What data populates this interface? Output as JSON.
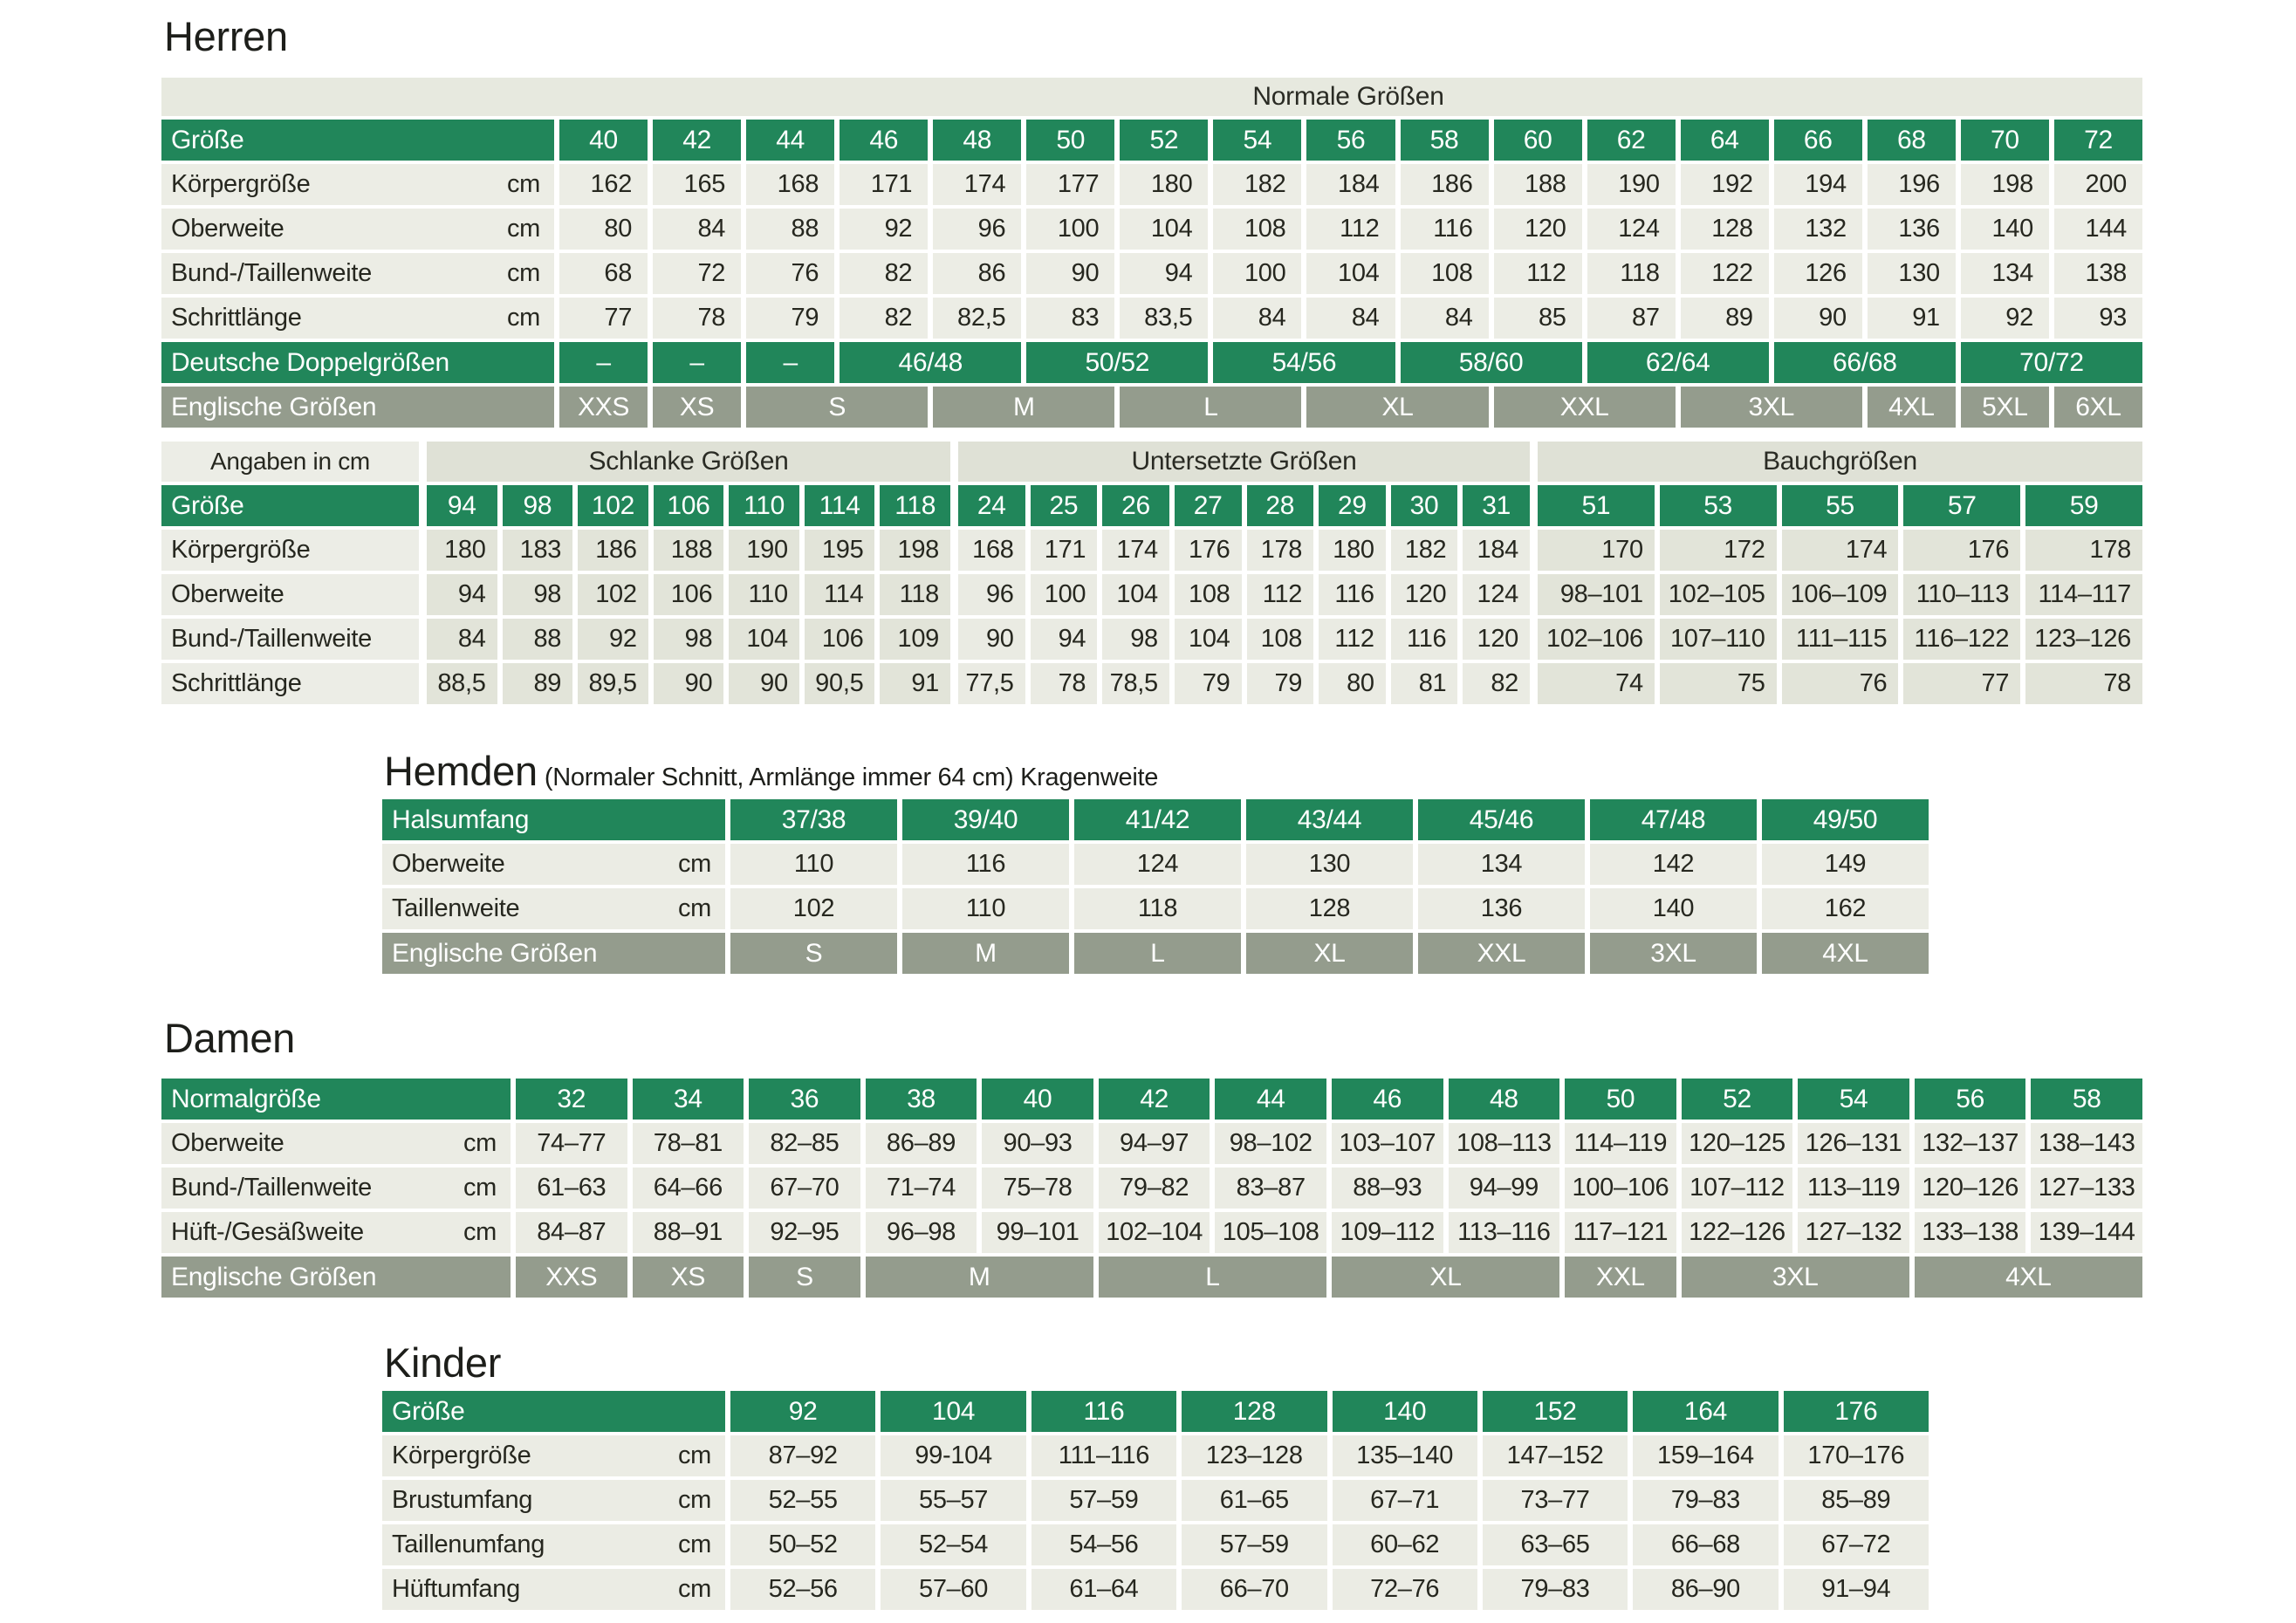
{
  "herren": {
    "title": "Herren",
    "band": "Normale Größen",
    "size_label": "Größe",
    "sizes": [
      "40",
      "42",
      "44",
      "46",
      "48",
      "50",
      "52",
      "54",
      "56",
      "58",
      "60",
      "62",
      "64",
      "66",
      "68",
      "70",
      "72"
    ],
    "rows": [
      {
        "label": "Körpergröße",
        "unit": "cm",
        "values": [
          "162",
          "165",
          "168",
          "171",
          "174",
          "177",
          "180",
          "182",
          "184",
          "186",
          "188",
          "190",
          "192",
          "194",
          "196",
          "198",
          "200"
        ]
      },
      {
        "label": "Oberweite",
        "unit": "cm",
        "values": [
          "80",
          "84",
          "88",
          "92",
          "96",
          "100",
          "104",
          "108",
          "112",
          "116",
          "120",
          "124",
          "128",
          "132",
          "136",
          "140",
          "144"
        ]
      },
      {
        "label": "Bund-/Taillenweite",
        "unit": "cm",
        "values": [
          "68",
          "72",
          "76",
          "82",
          "86",
          "90",
          "94",
          "100",
          "104",
          "108",
          "112",
          "118",
          "122",
          "126",
          "130",
          "134",
          "138"
        ]
      },
      {
        "label": "Schrittlänge",
        "unit": "cm",
        "values": [
          "77",
          "78",
          "79",
          "82",
          "82,5",
          "83",
          "83,5",
          "84",
          "84",
          "84",
          "85",
          "87",
          "89",
          "90",
          "91",
          "92",
          "93"
        ]
      }
    ],
    "doppel": {
      "label": "Deutsche Doppelgrößen",
      "cells": [
        {
          "t": "–",
          "s": 1
        },
        {
          "t": "–",
          "s": 1
        },
        {
          "t": "–",
          "s": 1
        },
        {
          "t": "46/48",
          "s": 2
        },
        {
          "t": "50/52",
          "s": 2
        },
        {
          "t": "54/56",
          "s": 2
        },
        {
          "t": "58/60",
          "s": 2
        },
        {
          "t": "62/64",
          "s": 2
        },
        {
          "t": "66/68",
          "s": 2
        },
        {
          "t": "70/72",
          "s": 2
        }
      ]
    },
    "english": {
      "label": "Englische Größen",
      "cells": [
        {
          "t": "XXS",
          "s": 1
        },
        {
          "t": "XS",
          "s": 1
        },
        {
          "t": "S",
          "s": 2
        },
        {
          "t": "M",
          "s": 2
        },
        {
          "t": "L",
          "s": 2
        },
        {
          "t": "XL",
          "s": 2
        },
        {
          "t": "XXL",
          "s": 2
        },
        {
          "t": "3XL",
          "s": 2
        },
        {
          "t": "4XL",
          "s": 1
        },
        {
          "t": "5XL",
          "s": 1
        },
        {
          "t": "6XL",
          "s": 1
        }
      ]
    }
  },
  "spezial": {
    "corner": "Angaben in cm",
    "size_label": "Größe",
    "row_labels": [
      "Körpergröße",
      "Oberweite",
      "Bund-/Taillenweite",
      "Schrittlänge"
    ],
    "groups": [
      {
        "name": "Schlanke Größen",
        "sizes": [
          "94",
          "98",
          "102",
          "106",
          "110",
          "114",
          "118"
        ],
        "rows": [
          [
            "180",
            "183",
            "186",
            "188",
            "190",
            "195",
            "198"
          ],
          [
            "94",
            "98",
            "102",
            "106",
            "110",
            "114",
            "118"
          ],
          [
            "84",
            "88",
            "92",
            "98",
            "104",
            "106",
            "109"
          ],
          [
            "88,5",
            "89",
            "89,5",
            "90",
            "90",
            "90,5",
            "91"
          ]
        ]
      },
      {
        "name": "Untersetzte Größen",
        "sizes": [
          "24",
          "25",
          "26",
          "27",
          "28",
          "29",
          "30",
          "31"
        ],
        "rows": [
          [
            "168",
            "171",
            "174",
            "176",
            "178",
            "180",
            "182",
            "184"
          ],
          [
            "96",
            "100",
            "104",
            "108",
            "112",
            "116",
            "120",
            "124"
          ],
          [
            "90",
            "94",
            "98",
            "104",
            "108",
            "112",
            "116",
            "120"
          ],
          [
            "77,5",
            "78",
            "78,5",
            "79",
            "79",
            "80",
            "81",
            "82"
          ]
        ]
      },
      {
        "name": "Bauchgrößen",
        "sizes": [
          "51",
          "53",
          "55",
          "57",
          "59"
        ],
        "rows": [
          [
            "170",
            "172",
            "174",
            "176",
            "178"
          ],
          [
            "98–101",
            "102–105",
            "106–109",
            "110–113",
            "114–117"
          ],
          [
            "102–106",
            "107–110",
            "111–115",
            "116–122",
            "123–126"
          ],
          [
            "74",
            "75",
            "76",
            "77",
            "78"
          ]
        ]
      }
    ]
  },
  "hemden": {
    "title": "Hemden",
    "subtitle": "(Normaler Schnitt, Armlänge immer 64 cm) Kragenweite",
    "size_label": "Halsumfang",
    "sizes": [
      "37/38",
      "39/40",
      "41/42",
      "43/44",
      "45/46",
      "47/48",
      "49/50"
    ],
    "rows": [
      {
        "label": "Oberweite",
        "unit": "cm",
        "values": [
          "110",
          "116",
          "124",
          "130",
          "134",
          "142",
          "149"
        ]
      },
      {
        "label": "Taillenweite",
        "unit": "cm",
        "values": [
          "102",
          "110",
          "118",
          "128",
          "136",
          "140",
          "162"
        ]
      }
    ],
    "english": {
      "label": "Englische Größen",
      "cells": [
        {
          "t": "S",
          "s": 1
        },
        {
          "t": "M",
          "s": 1
        },
        {
          "t": "L",
          "s": 1
        },
        {
          "t": "XL",
          "s": 1
        },
        {
          "t": "XXL",
          "s": 1
        },
        {
          "t": "3XL",
          "s": 1
        },
        {
          "t": "4XL",
          "s": 1
        }
      ]
    }
  },
  "damen": {
    "title": "Damen",
    "size_label": "Normalgröße",
    "sizes": [
      "32",
      "34",
      "36",
      "38",
      "40",
      "42",
      "44",
      "46",
      "48",
      "50",
      "52",
      "54",
      "56",
      "58"
    ],
    "rows": [
      {
        "label": "Oberweite",
        "unit": "cm",
        "values": [
          "74–77",
          "78–81",
          "82–85",
          "86–89",
          "90–93",
          "94–97",
          "98–102",
          "103–107",
          "108–113",
          "114–119",
          "120–125",
          "126–131",
          "132–137",
          "138–143"
        ]
      },
      {
        "label": "Bund-/Taillenweite",
        "unit": "cm",
        "values": [
          "61–63",
          "64–66",
          "67–70",
          "71–74",
          "75–78",
          "79–82",
          "83–87",
          "88–93",
          "94–99",
          "100–106",
          "107–112",
          "113–119",
          "120–126",
          "127–133"
        ]
      },
      {
        "label": "Hüft-/Gesäßweite",
        "unit": "cm",
        "values": [
          "84–87",
          "88–91",
          "92–95",
          "96–98",
          "99–101",
          "102–104",
          "105–108",
          "109–112",
          "113–116",
          "117–121",
          "122–126",
          "127–132",
          "133–138",
          "139–144"
        ]
      }
    ],
    "english": {
      "label": "Englische Größen",
      "cells": [
        {
          "t": "XXS",
          "s": 1
        },
        {
          "t": "XS",
          "s": 1
        },
        {
          "t": "S",
          "s": 1
        },
        {
          "t": "M",
          "s": 2
        },
        {
          "t": "L",
          "s": 2
        },
        {
          "t": "XL",
          "s": 2
        },
        {
          "t": "XXL",
          "s": 1
        },
        {
          "t": "3XL",
          "s": 2
        },
        {
          "t": "4XL",
          "s": 2
        }
      ]
    }
  },
  "kinder": {
    "title": "Kinder",
    "size_label": "Größe",
    "sizes": [
      "92",
      "104",
      "116",
      "128",
      "140",
      "152",
      "164",
      "176"
    ],
    "rows": [
      {
        "label": "Körpergröße",
        "unit": "cm",
        "values": [
          "87–92",
          "99-104",
          "111–116",
          "123–128",
          "135–140",
          "147–152",
          "159–164",
          "170–176"
        ]
      },
      {
        "label": "Brustumfang",
        "unit": "cm",
        "values": [
          "52–55",
          "55–57",
          "57–59",
          "61–65",
          "67–71",
          "73–77",
          "79–83",
          "85–89"
        ]
      },
      {
        "label": "Taillenumfang",
        "unit": "cm",
        "values": [
          "50–52",
          "52–54",
          "54–56",
          "57–59",
          "60–62",
          "63–65",
          "66–68",
          "67–72"
        ]
      },
      {
        "label": "Hüftumfang",
        "unit": "cm",
        "values": [
          "52–56",
          "57–60",
          "61–64",
          "66–70",
          "72–76",
          "79–83",
          "86–90",
          "91–94"
        ]
      }
    ]
  }
}
